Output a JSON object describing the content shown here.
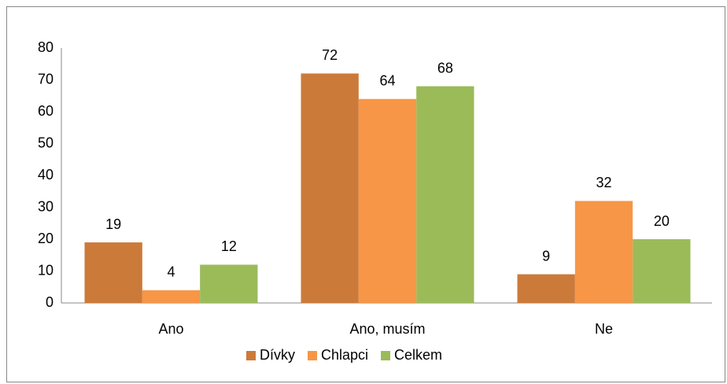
{
  "chart_data": {
    "type": "bar",
    "categories": [
      "Ano",
      "Ano, musím",
      "Ne"
    ],
    "series": [
      {
        "name": "Dívky",
        "color": "#cc7a3a",
        "values": [
          19,
          72,
          9
        ]
      },
      {
        "name": "Chlapci",
        "color": "#f79646",
        "values": [
          4,
          64,
          32
        ]
      },
      {
        "name": "Celkem",
        "color": "#9bbb59",
        "values": [
          12,
          68,
          20
        ]
      }
    ],
    "ylim": [
      0,
      80
    ],
    "yticks": [
      0,
      10,
      20,
      30,
      40,
      50,
      60,
      70,
      80
    ],
    "grid": false,
    "legend": "bottom",
    "data_labels": true
  }
}
